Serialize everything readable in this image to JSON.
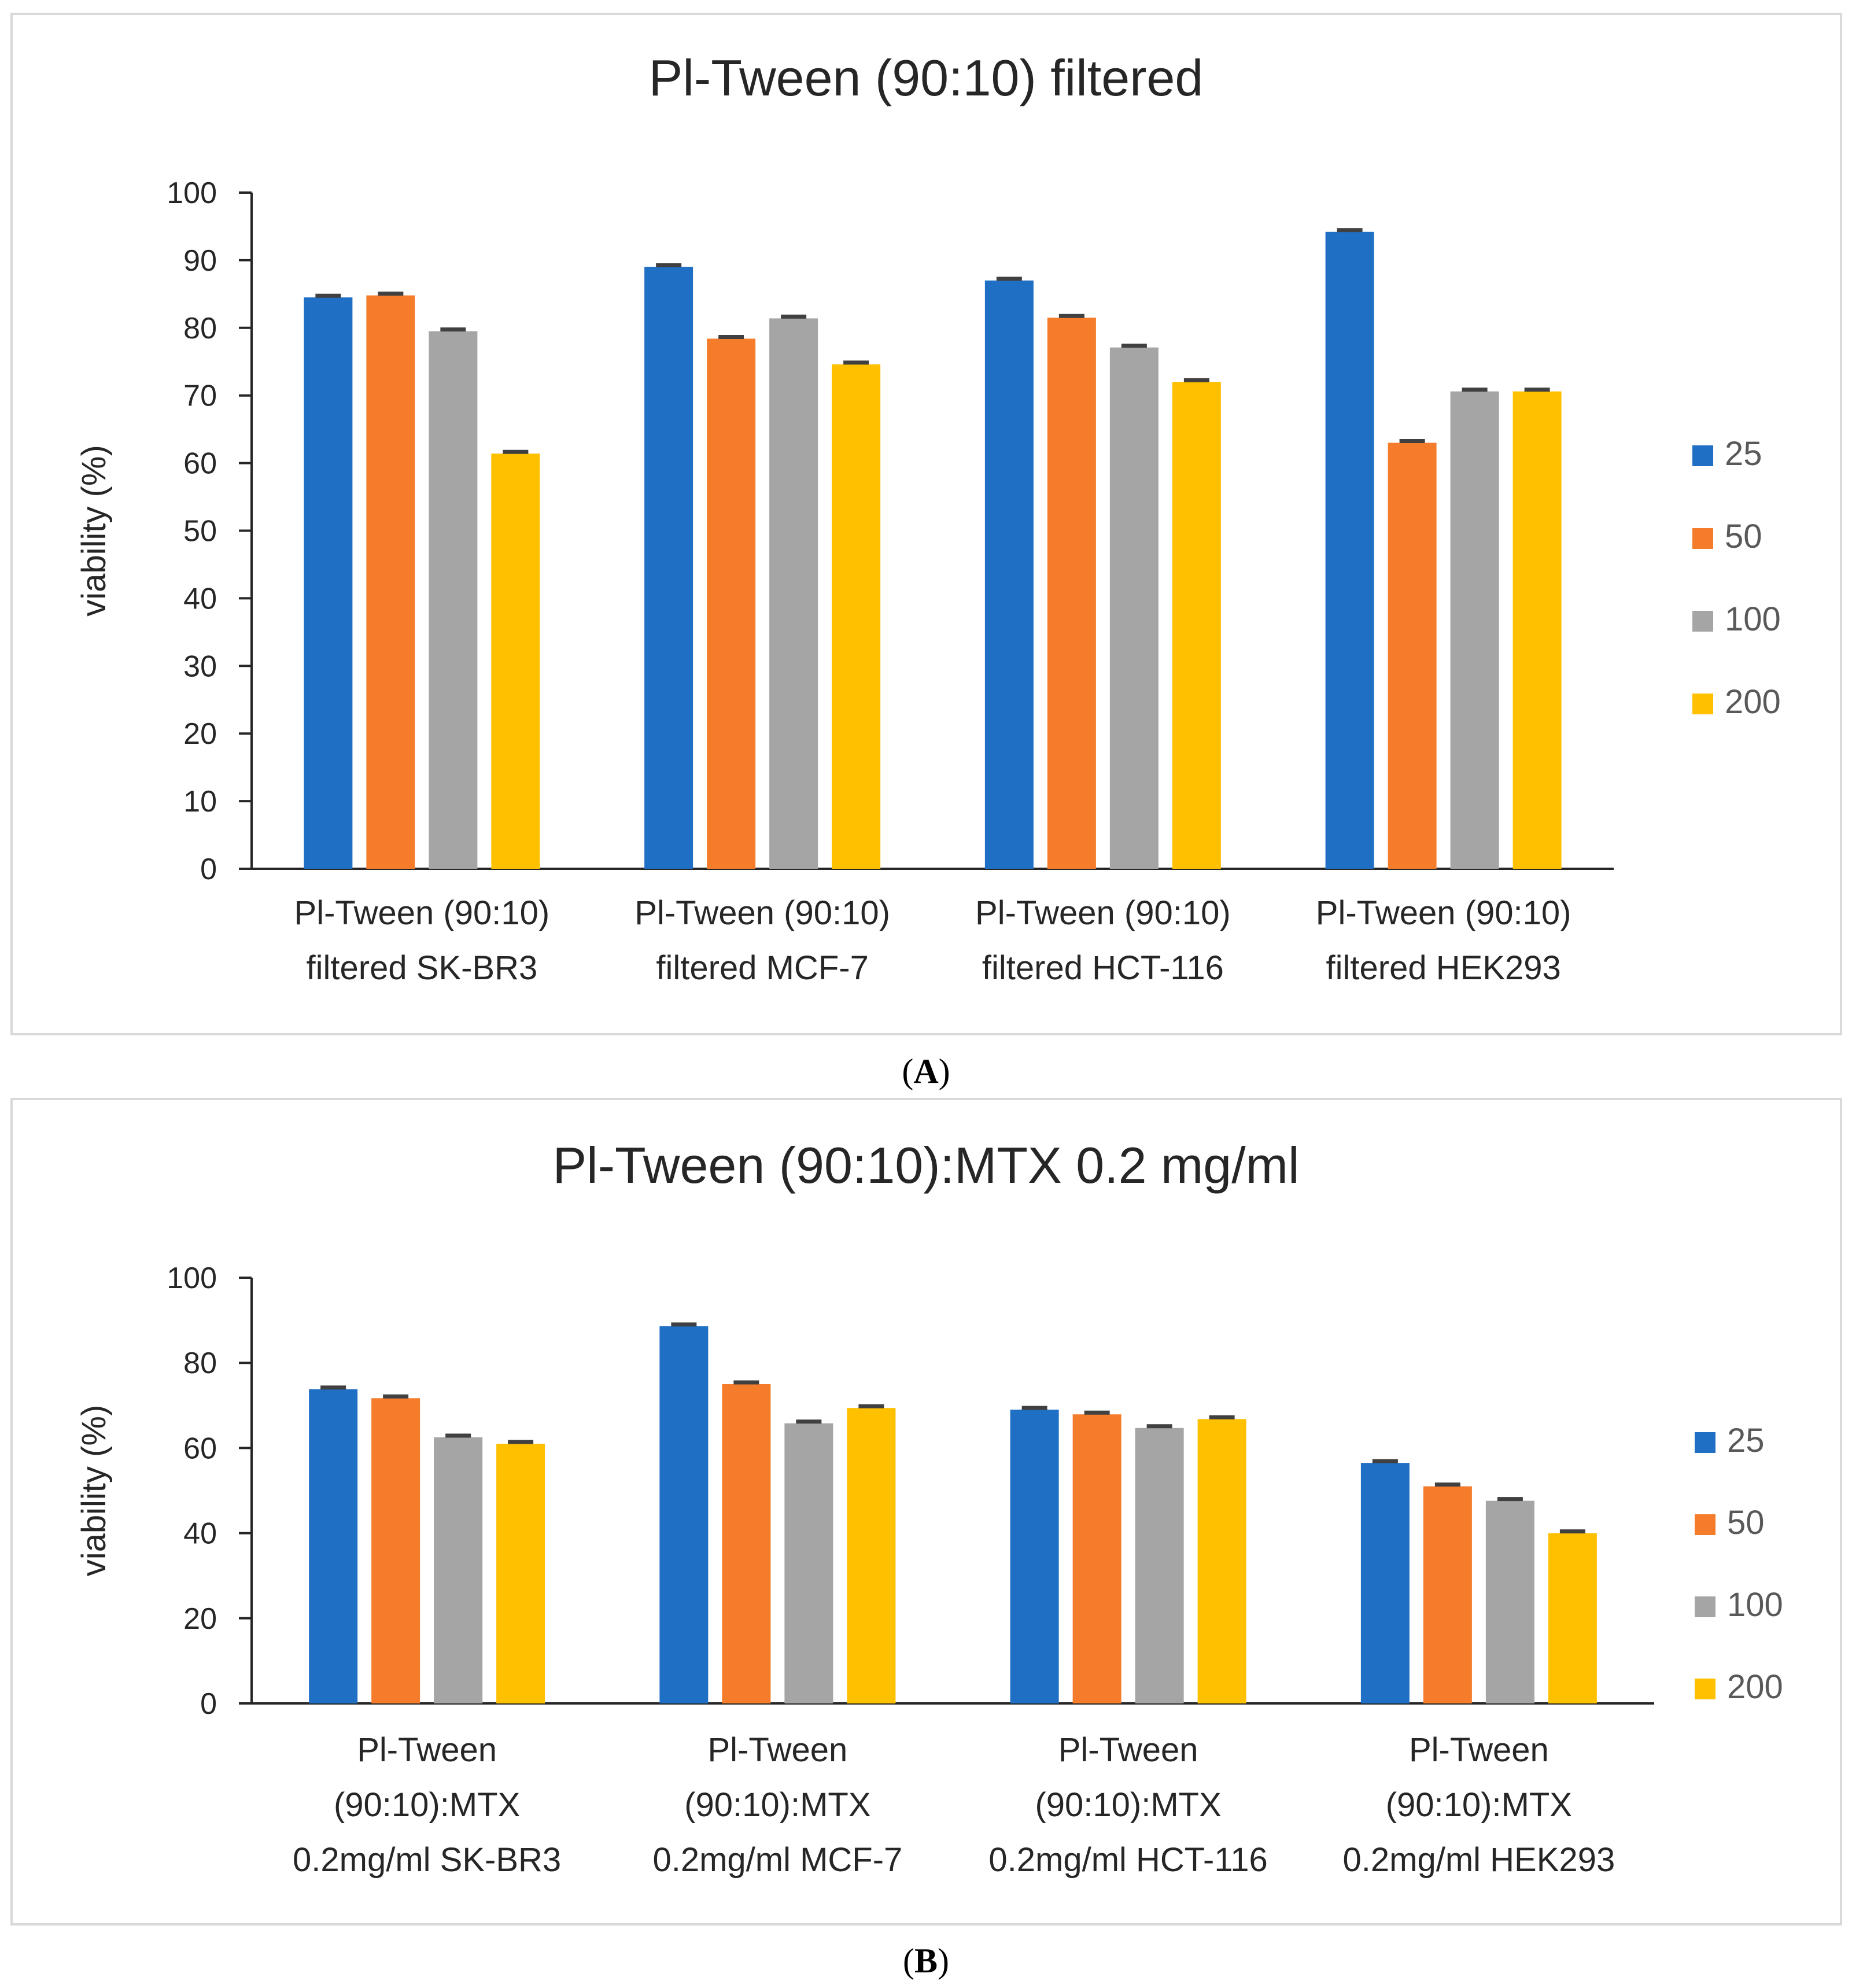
{
  "colors": {
    "s25": "#1f6fc5",
    "s50": "#f47c2b",
    "s100": "#a5a5a5",
    "s200": "#ffc000",
    "axis": "#262626",
    "frame": "#d9d9d9",
    "errbar": "#404040"
  },
  "panel_labels": [
    "A",
    "B"
  ],
  "chart_data": [
    {
      "type": "bar",
      "title": "Pl-Tween (90:10) filtered",
      "ylabel": "viability (%)",
      "xlabel": "",
      "ylim": [
        0,
        100
      ],
      "yticks": [
        0,
        10,
        20,
        30,
        40,
        50,
        60,
        70,
        80,
        90,
        100
      ],
      "legend_position": "right",
      "categories": [
        [
          "Pl-Tween (90:10)",
          "filtered SK-BR3"
        ],
        [
          "Pl-Tween (90:10)",
          "filtered MCF-7"
        ],
        [
          "Pl-Tween (90:10)",
          "filtered HCT-116"
        ],
        [
          "Pl-Tween (90:10)",
          "filtered HEK293"
        ]
      ],
      "series": [
        {
          "name": "25",
          "color_key": "s25",
          "values": [
            84.5,
            89,
            87,
            94.2
          ]
        },
        {
          "name": "50",
          "color_key": "s50",
          "values": [
            84.8,
            78.4,
            81.5,
            63
          ]
        },
        {
          "name": "100",
          "color_key": "s100",
          "values": [
            79.5,
            81.4,
            77.1,
            70.6
          ]
        },
        {
          "name": "200",
          "color_key": "s200",
          "values": [
            61.4,
            74.6,
            72,
            70.6
          ]
        }
      ]
    },
    {
      "type": "bar",
      "title": "Pl-Tween (90:10):MTX 0.2 mg/ml",
      "ylabel": "viability (%)",
      "xlabel": "",
      "ylim": [
        0,
        100
      ],
      "yticks": [
        0,
        20,
        40,
        60,
        80,
        100
      ],
      "legend_position": "right",
      "categories": [
        [
          "Pl-Tween",
          "(90:10):MTX",
          "0.2mg/ml SK-BR3"
        ],
        [
          "Pl-Tween",
          "(90:10):MTX",
          "0.2mg/ml MCF-7"
        ],
        [
          "Pl-Tween",
          "(90:10):MTX",
          "0.2mg/ml HCT-116"
        ],
        [
          "Pl-Tween",
          "(90:10):MTX",
          "0.2mg/ml HEK293"
        ]
      ],
      "series": [
        {
          "name": "25",
          "color_key": "s25",
          "values": [
            73.8,
            88.6,
            69,
            56.5
          ]
        },
        {
          "name": "50",
          "color_key": "s50",
          "values": [
            71.7,
            75,
            67.9,
            51
          ]
        },
        {
          "name": "100",
          "color_key": "s100",
          "values": [
            62.5,
            65.8,
            64.7,
            47.6
          ]
        },
        {
          "name": "200",
          "color_key": "s200",
          "values": [
            61,
            69.4,
            66.8,
            40
          ]
        }
      ]
    }
  ]
}
